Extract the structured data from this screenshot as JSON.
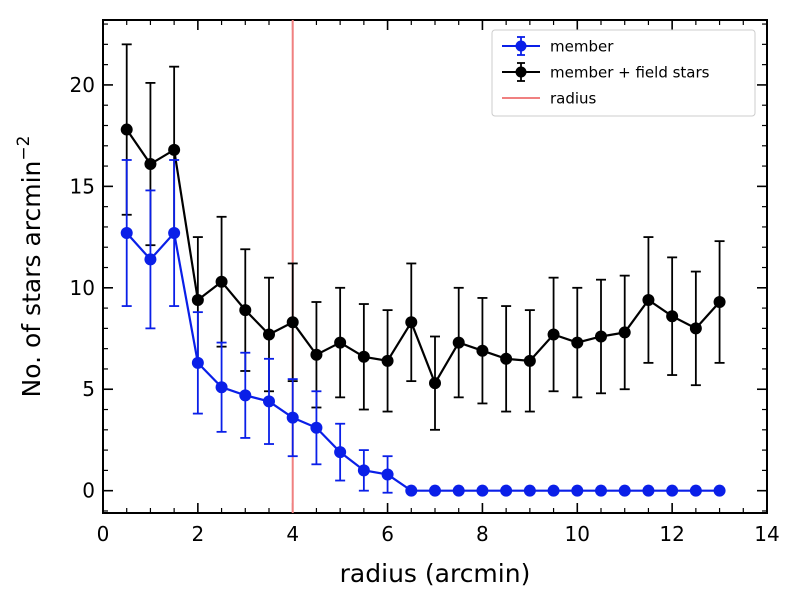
{
  "chart_data": {
    "type": "line",
    "xlabel": "radius (arcmin)",
    "ylabel": "No. of stars  arcmin",
    "ylabel_sup": "−2",
    "xlim": [
      0,
      14
    ],
    "ylim": [
      -1.1,
      23.2
    ],
    "xticks": [
      0,
      2,
      4,
      6,
      8,
      10,
      12,
      14
    ],
    "yticks": [
      0,
      5,
      10,
      15,
      20
    ],
    "xtick_labels": [
      "0",
      "2",
      "4",
      "6",
      "8",
      "10",
      "12",
      "14"
    ],
    "ytick_labels": [
      "0",
      "5",
      "10",
      "15",
      "20"
    ],
    "grid": false,
    "legend_position": "top-right",
    "radius_line": {
      "x": 4.0,
      "label": "radius",
      "color": "#f08080"
    },
    "series": [
      {
        "name": "member",
        "color": "#0a1fe8",
        "x": [
          0.5,
          1.0,
          1.5,
          2.0,
          2.5,
          3.0,
          3.5,
          4.0,
          4.5,
          5.0,
          5.5,
          6.0,
          6.5,
          7.0,
          7.5,
          8.0,
          8.5,
          9.0,
          9.5,
          10.0,
          10.5,
          11.0,
          11.5,
          12.0,
          12.5,
          13.0
        ],
        "y": [
          12.7,
          11.4,
          12.7,
          6.3,
          5.1,
          4.7,
          4.4,
          3.6,
          3.1,
          1.9,
          1.0,
          0.8,
          0,
          0,
          0,
          0,
          0,
          0,
          0,
          0,
          0,
          0,
          0,
          0,
          0,
          0
        ],
        "yerr": [
          3.6,
          3.4,
          3.6,
          2.5,
          2.2,
          2.1,
          2.1,
          1.9,
          1.8,
          1.4,
          1.0,
          0.9,
          0,
          0,
          0,
          0,
          0,
          0,
          0,
          0,
          0,
          0,
          0,
          0,
          0,
          0
        ]
      },
      {
        "name": "member + field stars",
        "color": "#000000",
        "x": [
          0.5,
          1.0,
          1.5,
          2.0,
          2.5,
          3.0,
          3.5,
          4.0,
          4.5,
          5.0,
          5.5,
          6.0,
          6.5,
          7.0,
          7.5,
          8.0,
          8.5,
          9.0,
          9.5,
          10.0,
          10.5,
          11.0,
          11.5,
          12.0,
          12.5,
          13.0
        ],
        "y": [
          17.8,
          16.1,
          16.8,
          9.4,
          10.3,
          8.9,
          7.7,
          8.3,
          6.7,
          7.3,
          6.6,
          6.4,
          8.3,
          5.3,
          7.3,
          6.9,
          6.5,
          6.4,
          7.7,
          7.3,
          7.6,
          7.8,
          9.4,
          8.6,
          8.0,
          9.3
        ],
        "yerr": [
          4.2,
          4.0,
          4.1,
          3.1,
          3.2,
          3.0,
          2.8,
          2.9,
          2.6,
          2.7,
          2.6,
          2.5,
          2.9,
          2.3,
          2.7,
          2.6,
          2.6,
          2.5,
          2.8,
          2.7,
          2.8,
          2.8,
          3.1,
          2.9,
          2.8,
          3.0
        ]
      }
    ]
  }
}
